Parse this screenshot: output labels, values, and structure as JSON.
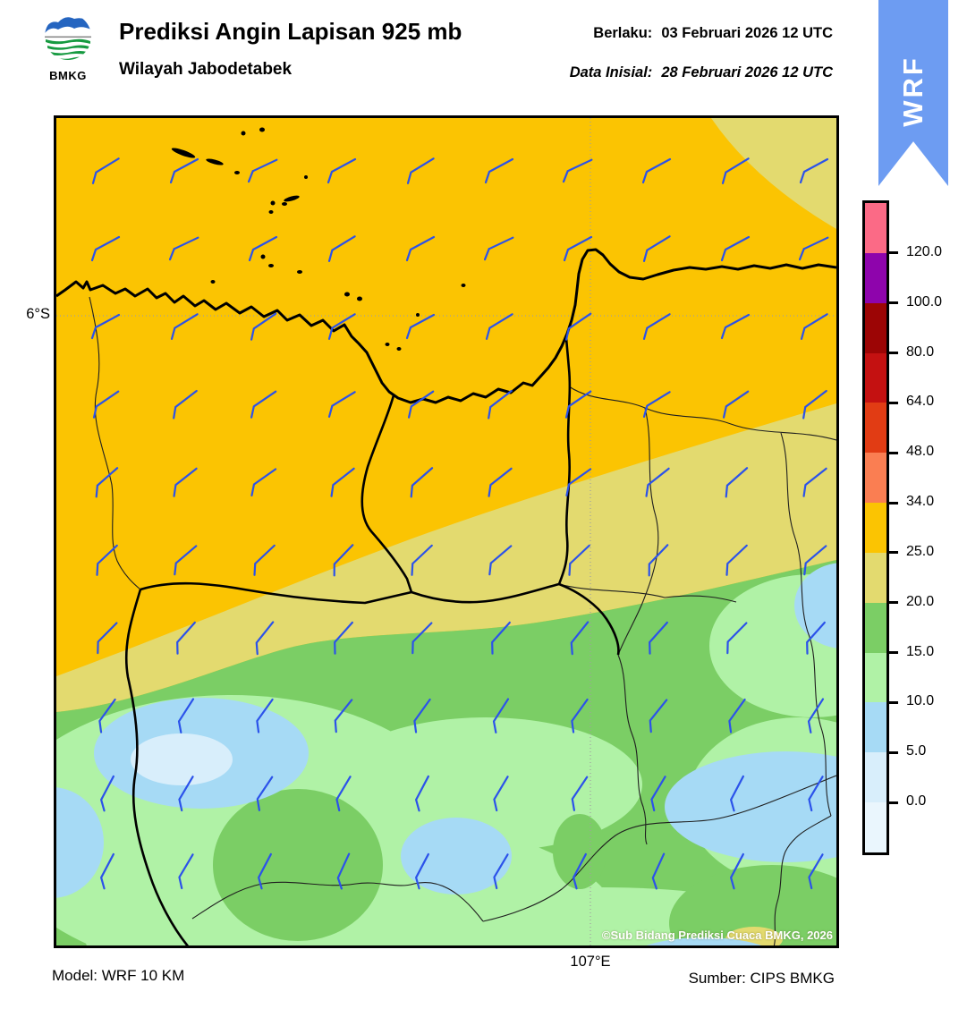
{
  "header": {
    "title": "Prediksi Angin Lapisan 925 mb",
    "subtitle": "Wilayah Jabodetabek",
    "valid_label": "Berlaku:",
    "valid_value": "03 Februari 2026 12 UTC",
    "init_label": "Data Inisial:",
    "init_value": "28 Februari 2026 12 UTC",
    "logo_text": "BMKG",
    "ribbon_text": "WRF"
  },
  "map": {
    "lat_label": "6°S",
    "lon_label": "107°E",
    "copyright": "©Sub Bidang Prediksi Cuaca BMKG, 2026"
  },
  "footer": {
    "model": "Model: WRF 10 KM",
    "source": "Sumber: CIPS BMKG"
  },
  "colorbar": {
    "tick_labels": [
      "120.0",
      "100.0",
      "80.0",
      "64.0",
      "48.0",
      "34.0",
      "25.0",
      "20.0",
      "15.0",
      "10.0",
      "5.0",
      "0.0"
    ],
    "segment_colors": [
      "#fb6a86",
      "#8e04ac",
      "#9c0505",
      "#c41111",
      "#e13c14",
      "#fa7e52",
      "#fbc402",
      "#e3da6f",
      "#7bce65",
      "#b0f2a6",
      "#a6daf5",
      "#d8eefb",
      "#eaf6fd"
    ]
  },
  "palette": {
    "gold": "#fbc402",
    "khaki": "#e3da6f",
    "green": "#7bce65",
    "light_green": "#b0f2a6",
    "light_blue": "#a6daf5",
    "pale_blue": "#d8eefb",
    "barb_blue": "#2b52ea",
    "ribbon_blue": "#6d9cf2",
    "line_black": "#000000",
    "line_thin": "#1f1f1f",
    "grid_grey": "#a0a0a0"
  },
  "wind_barbs": {
    "color": "#2b52ea",
    "cols": [
      57,
      145,
      233,
      321,
      409,
      497,
      585,
      673,
      761,
      849
    ],
    "rows": [
      53,
      140,
      227,
      314,
      401,
      488,
      575,
      662,
      749,
      836
    ],
    "row_angles": [
      0,
      0,
      -3,
      -6,
      -10,
      -15,
      -20,
      -26,
      -31,
      -34
    ],
    "jitter": [
      -3,
      0,
      3,
      0
    ]
  },
  "islands": [
    [
      142,
      39,
      14,
      3,
      20
    ],
    [
      177,
      49,
      10,
      2.5,
      15
    ],
    [
      209,
      17,
      2.5,
      2.5,
      0
    ],
    [
      230,
      13,
      3,
      2.5,
      0
    ],
    [
      202,
      61,
      3,
      2,
      0
    ],
    [
      279,
      66,
      2,
      2,
      0
    ],
    [
      242,
      95,
      2.5,
      2.5,
      0
    ],
    [
      255,
      96,
      3,
      2,
      0
    ],
    [
      263,
      90,
      9,
      2.5,
      -15
    ],
    [
      240,
      105,
      2.5,
      2,
      0
    ],
    [
      231,
      155,
      2.5,
      2.5,
      0
    ],
    [
      240,
      165,
      3,
      2,
      0
    ],
    [
      272,
      172,
      3,
      2,
      0
    ],
    [
      175,
      183,
      2.5,
      2,
      0
    ],
    [
      325,
      197,
      3,
      2.5,
      0
    ],
    [
      339,
      202,
      3,
      2.5,
      0
    ],
    [
      404,
      220,
      2,
      2,
      0
    ],
    [
      455,
      187,
      2.5,
      2,
      0
    ],
    [
      370,
      253,
      2.5,
      2,
      0
    ],
    [
      383,
      258,
      2.5,
      2,
      0
    ]
  ]
}
